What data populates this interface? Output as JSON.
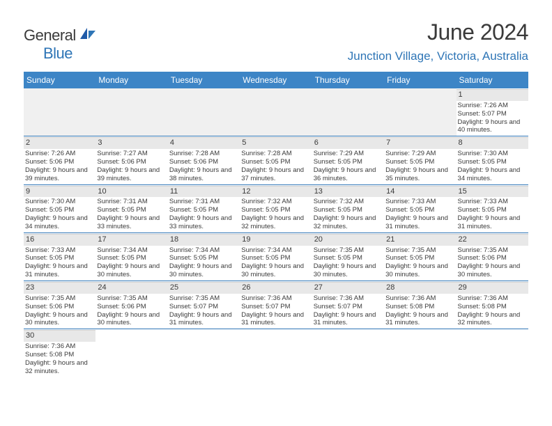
{
  "logo": {
    "general": "General",
    "blue": "Blue"
  },
  "title": "June 2024",
  "location": "Junction Village, Victoria, Australia",
  "colors": {
    "header_bg": "#3d85c6",
    "accent": "#2e75b6",
    "daynum_bg": "#e8e8e8",
    "text": "#3a3a3a"
  },
  "dayNames": [
    "Sunday",
    "Monday",
    "Tuesday",
    "Wednesday",
    "Thursday",
    "Friday",
    "Saturday"
  ],
  "weeks": [
    [
      null,
      null,
      null,
      null,
      null,
      null,
      {
        "n": "1",
        "sr": "7:26 AM",
        "ss": "5:07 PM",
        "dl": "9 hours and 40 minutes."
      }
    ],
    [
      {
        "n": "2",
        "sr": "7:26 AM",
        "ss": "5:06 PM",
        "dl": "9 hours and 39 minutes."
      },
      {
        "n": "3",
        "sr": "7:27 AM",
        "ss": "5:06 PM",
        "dl": "9 hours and 39 minutes."
      },
      {
        "n": "4",
        "sr": "7:28 AM",
        "ss": "5:06 PM",
        "dl": "9 hours and 38 minutes."
      },
      {
        "n": "5",
        "sr": "7:28 AM",
        "ss": "5:05 PM",
        "dl": "9 hours and 37 minutes."
      },
      {
        "n": "6",
        "sr": "7:29 AM",
        "ss": "5:05 PM",
        "dl": "9 hours and 36 minutes."
      },
      {
        "n": "7",
        "sr": "7:29 AM",
        "ss": "5:05 PM",
        "dl": "9 hours and 35 minutes."
      },
      {
        "n": "8",
        "sr": "7:30 AM",
        "ss": "5:05 PM",
        "dl": "9 hours and 34 minutes."
      }
    ],
    [
      {
        "n": "9",
        "sr": "7:30 AM",
        "ss": "5:05 PM",
        "dl": "9 hours and 34 minutes."
      },
      {
        "n": "10",
        "sr": "7:31 AM",
        "ss": "5:05 PM",
        "dl": "9 hours and 33 minutes."
      },
      {
        "n": "11",
        "sr": "7:31 AM",
        "ss": "5:05 PM",
        "dl": "9 hours and 33 minutes."
      },
      {
        "n": "12",
        "sr": "7:32 AM",
        "ss": "5:05 PM",
        "dl": "9 hours and 32 minutes."
      },
      {
        "n": "13",
        "sr": "7:32 AM",
        "ss": "5:05 PM",
        "dl": "9 hours and 32 minutes."
      },
      {
        "n": "14",
        "sr": "7:33 AM",
        "ss": "5:05 PM",
        "dl": "9 hours and 31 minutes."
      },
      {
        "n": "15",
        "sr": "7:33 AM",
        "ss": "5:05 PM",
        "dl": "9 hours and 31 minutes."
      }
    ],
    [
      {
        "n": "16",
        "sr": "7:33 AM",
        "ss": "5:05 PM",
        "dl": "9 hours and 31 minutes."
      },
      {
        "n": "17",
        "sr": "7:34 AM",
        "ss": "5:05 PM",
        "dl": "9 hours and 30 minutes."
      },
      {
        "n": "18",
        "sr": "7:34 AM",
        "ss": "5:05 PM",
        "dl": "9 hours and 30 minutes."
      },
      {
        "n": "19",
        "sr": "7:34 AM",
        "ss": "5:05 PM",
        "dl": "9 hours and 30 minutes."
      },
      {
        "n": "20",
        "sr": "7:35 AM",
        "ss": "5:05 PM",
        "dl": "9 hours and 30 minutes."
      },
      {
        "n": "21",
        "sr": "7:35 AM",
        "ss": "5:05 PM",
        "dl": "9 hours and 30 minutes."
      },
      {
        "n": "22",
        "sr": "7:35 AM",
        "ss": "5:06 PM",
        "dl": "9 hours and 30 minutes."
      }
    ],
    [
      {
        "n": "23",
        "sr": "7:35 AM",
        "ss": "5:06 PM",
        "dl": "9 hours and 30 minutes."
      },
      {
        "n": "24",
        "sr": "7:35 AM",
        "ss": "5:06 PM",
        "dl": "9 hours and 30 minutes."
      },
      {
        "n": "25",
        "sr": "7:35 AM",
        "ss": "5:07 PM",
        "dl": "9 hours and 31 minutes."
      },
      {
        "n": "26",
        "sr": "7:36 AM",
        "ss": "5:07 PM",
        "dl": "9 hours and 31 minutes."
      },
      {
        "n": "27",
        "sr": "7:36 AM",
        "ss": "5:07 PM",
        "dl": "9 hours and 31 minutes."
      },
      {
        "n": "28",
        "sr": "7:36 AM",
        "ss": "5:08 PM",
        "dl": "9 hours and 31 minutes."
      },
      {
        "n": "29",
        "sr": "7:36 AM",
        "ss": "5:08 PM",
        "dl": "9 hours and 32 minutes."
      }
    ],
    [
      {
        "n": "30",
        "sr": "7:36 AM",
        "ss": "5:08 PM",
        "dl": "9 hours and 32 minutes."
      },
      null,
      null,
      null,
      null,
      null,
      null
    ]
  ],
  "labels": {
    "sunrise": "Sunrise: ",
    "sunset": "Sunset: ",
    "daylight": "Daylight: "
  }
}
